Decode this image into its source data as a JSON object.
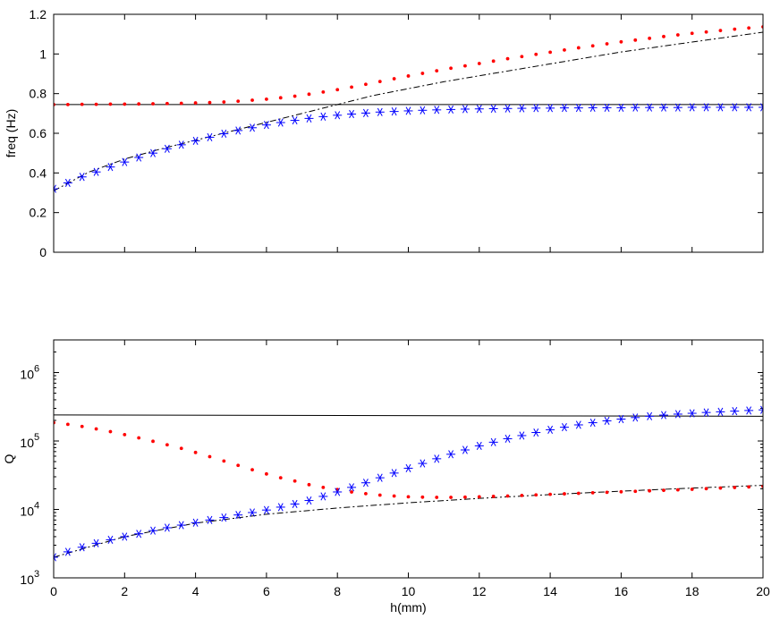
{
  "chart_data": [
    {
      "type": "line",
      "title": "",
      "xlabel": "",
      "ylabel": "freq (Hz)",
      "xlim": [
        0,
        20
      ],
      "ylim": [
        0,
        1.2
      ],
      "xticks": [],
      "yticks": [
        "0",
        "0.2",
        "0.4",
        "0.6",
        "0.8",
        "1",
        "1.2"
      ],
      "ytick_values": [
        0,
        0.2,
        0.4,
        0.6,
        0.8,
        1.0,
        1.2
      ],
      "grid": false,
      "series": [
        {
          "style": "solid",
          "color": "#000000",
          "x": [
            0,
            20
          ],
          "y": [
            0.745,
            0.745
          ]
        },
        {
          "style": "dashdot",
          "color": "#000000",
          "x": [
            0,
            1,
            2,
            3,
            4,
            5,
            6,
            7,
            8,
            9,
            10,
            11,
            12,
            13,
            14,
            15,
            16,
            17,
            18,
            19,
            20
          ],
          "y": [
            0.31,
            0.405,
            0.47,
            0.52,
            0.565,
            0.61,
            0.655,
            0.7,
            0.745,
            0.79,
            0.825,
            0.86,
            0.89,
            0.92,
            0.95,
            0.98,
            1.01,
            1.035,
            1.06,
            1.085,
            1.11
          ]
        },
        {
          "style": "dots",
          "color": "#ff0000",
          "x": [
            0,
            0.4,
            0.8,
            1.2,
            1.6,
            2.0,
            2.4,
            2.8,
            3.2,
            3.6,
            4.0,
            4.4,
            4.8,
            5.2,
            5.6,
            6.0,
            6.4,
            6.8,
            7.2,
            7.6,
            8.0,
            8.4,
            8.8,
            9.2,
            9.6,
            10.0,
            10.4,
            10.8,
            11.2,
            11.6,
            12.0,
            12.4,
            12.8,
            13.2,
            13.6,
            14.0,
            14.4,
            14.8,
            15.2,
            15.6,
            16.0,
            16.4,
            16.8,
            17.2,
            17.6,
            18.0,
            18.4,
            18.8,
            19.2,
            19.6,
            20.0
          ],
          "y": [
            0.745,
            0.745,
            0.746,
            0.746,
            0.747,
            0.747,
            0.748,
            0.749,
            0.75,
            0.751,
            0.753,
            0.755,
            0.758,
            0.762,
            0.767,
            0.772,
            0.779,
            0.787,
            0.797,
            0.808,
            0.82,
            0.833,
            0.847,
            0.861,
            0.875,
            0.889,
            0.902,
            0.915,
            0.928,
            0.94,
            0.952,
            0.964,
            0.976,
            0.987,
            0.998,
            1.009,
            1.02,
            1.031,
            1.041,
            1.051,
            1.061,
            1.07,
            1.079,
            1.088,
            1.096,
            1.104,
            1.111,
            1.118,
            1.125,
            1.131,
            1.137
          ]
        },
        {
          "style": "stars",
          "color": "#0000ff",
          "x": [
            0,
            0.4,
            0.8,
            1.2,
            1.6,
            2.0,
            2.4,
            2.8,
            3.2,
            3.6,
            4.0,
            4.4,
            4.8,
            5.2,
            5.6,
            6.0,
            6.4,
            6.8,
            7.2,
            7.6,
            8.0,
            8.4,
            8.8,
            9.2,
            9.6,
            10.0,
            10.4,
            10.8,
            11.2,
            11.6,
            12.0,
            12.4,
            12.8,
            13.2,
            13.6,
            14.0,
            14.4,
            14.8,
            15.2,
            15.6,
            16.0,
            16.4,
            16.8,
            17.2,
            17.6,
            18.0,
            18.4,
            18.8,
            19.2,
            19.6,
            20.0
          ],
          "y": [
            0.32,
            0.35,
            0.38,
            0.405,
            0.43,
            0.455,
            0.478,
            0.5,
            0.522,
            0.542,
            0.562,
            0.58,
            0.598,
            0.614,
            0.628,
            0.642,
            0.654,
            0.665,
            0.675,
            0.684,
            0.691,
            0.697,
            0.702,
            0.707,
            0.71,
            0.713,
            0.716,
            0.718,
            0.72,
            0.722,
            0.723,
            0.724,
            0.725,
            0.726,
            0.727,
            0.727,
            0.728,
            0.728,
            0.729,
            0.729,
            0.729,
            0.73,
            0.73,
            0.73,
            0.73,
            0.731,
            0.731,
            0.731,
            0.731,
            0.731,
            0.731
          ]
        }
      ]
    },
    {
      "type": "line",
      "title": "",
      "xlabel": "h(mm)",
      "ylabel": "Q",
      "xlim": [
        0,
        20
      ],
      "ylim": [
        1000,
        3000000
      ],
      "yscale": "log",
      "xticks": [
        "0",
        "2",
        "4",
        "6",
        "8",
        "10",
        "12",
        "14",
        "16",
        "18",
        "20"
      ],
      "xtick_values": [
        0,
        2,
        4,
        6,
        8,
        10,
        12,
        14,
        16,
        18,
        20
      ],
      "yticks": [
        {
          "base": "10",
          "exp": "3",
          "value": 1000
        },
        {
          "base": "10",
          "exp": "4",
          "value": 10000
        },
        {
          "base": "10",
          "exp": "5",
          "value": 100000
        },
        {
          "base": "10",
          "exp": "6",
          "value": 1000000
        }
      ],
      "grid": false,
      "series": [
        {
          "style": "solid",
          "color": "#000000",
          "x": [
            0,
            20
          ],
          "y": [
            240000,
            230000
          ]
        },
        {
          "style": "dashdot",
          "color": "#000000",
          "x": [
            0,
            2,
            4,
            6,
            8,
            10,
            12,
            14,
            16,
            18,
            20
          ],
          "y": [
            2000,
            4000,
            6300,
            8500,
            10500,
            12500,
            14500,
            16500,
            18500,
            20500,
            22500
          ]
        },
        {
          "style": "dots",
          "color": "#ff0000",
          "x": [
            0,
            0.4,
            0.8,
            1.2,
            1.6,
            2.0,
            2.4,
            2.8,
            3.2,
            3.6,
            4.0,
            4.4,
            4.8,
            5.2,
            5.6,
            6.0,
            6.4,
            6.8,
            7.2,
            7.6,
            8.0,
            8.4,
            8.8,
            9.2,
            9.6,
            10.0,
            10.4,
            10.8,
            11.2,
            11.6,
            12.0,
            12.4,
            12.8,
            13.2,
            13.6,
            14.0,
            14.4,
            14.8,
            15.2,
            15.6,
            16.0,
            16.4,
            16.8,
            17.2,
            17.6,
            18.0,
            18.4,
            18.8,
            19.2,
            19.6,
            20.0
          ],
          "y": [
            185000,
            175000,
            163000,
            150000,
            137000,
            124000,
            111000,
            99000,
            88000,
            78000,
            68000,
            59000,
            51000,
            44000,
            38000,
            33000,
            29000,
            26000,
            23000,
            21000,
            19500,
            18000,
            17000,
            16200,
            15700,
            15300,
            15100,
            15000,
            15000,
            15100,
            15300,
            15500,
            15700,
            16000,
            16300,
            16600,
            16900,
            17200,
            17500,
            17800,
            18100,
            18400,
            18700,
            19000,
            19300,
            19700,
            20100,
            20500,
            20900,
            21300,
            21700
          ]
        },
        {
          "style": "stars",
          "color": "#0000ff",
          "x": [
            0,
            0.4,
            0.8,
            1.2,
            1.6,
            2.0,
            2.4,
            2.8,
            3.2,
            3.6,
            4.0,
            4.4,
            4.8,
            5.2,
            5.6,
            6.0,
            6.4,
            6.8,
            7.2,
            7.6,
            8.0,
            8.4,
            8.8,
            9.2,
            9.6,
            10.0,
            10.4,
            10.8,
            11.2,
            11.6,
            12.0,
            12.4,
            12.8,
            13.2,
            13.6,
            14.0,
            14.4,
            14.8,
            15.2,
            15.6,
            16.0,
            16.4,
            16.8,
            17.2,
            17.6,
            18.0,
            18.4,
            18.8,
            19.2,
            19.6,
            20.0
          ],
          "y": [
            2000,
            2400,
            2800,
            3200,
            3600,
            4000,
            4400,
            4900,
            5400,
            5900,
            6400,
            7000,
            7600,
            8300,
            9000,
            9800,
            10800,
            12000,
            13500,
            15500,
            18000,
            21000,
            24500,
            29000,
            34000,
            40000,
            47000,
            55000,
            64000,
            74000,
            85000,
            96000,
            108000,
            120000,
            133000,
            146000,
            159000,
            172000,
            185000,
            197000,
            209000,
            220000,
            230000,
            239000,
            247000,
            254000,
            261000,
            267000,
            273000,
            279000,
            285000
          ]
        }
      ]
    }
  ]
}
